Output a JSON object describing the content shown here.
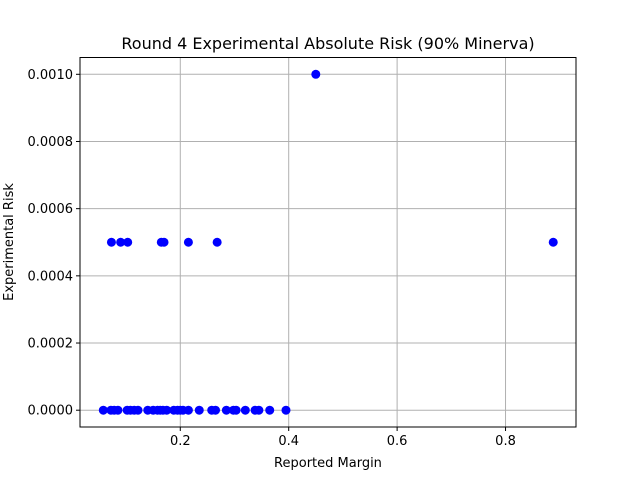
{
  "chart_data": {
    "type": "scatter",
    "title": "Round 4 Experimental Absolute Risk (90% Minerva)",
    "xlabel": "Reported Margin",
    "ylabel": "Experimental Risk",
    "xlim": [
      0.015,
      0.93
    ],
    "ylim": [
      -5e-05,
      0.00105
    ],
    "x_ticks": [
      0.2,
      0.4,
      0.6,
      0.8
    ],
    "x_tick_labels": [
      "0.2",
      "0.4",
      "0.6",
      "0.8"
    ],
    "y_ticks": [
      0.0,
      0.0002,
      0.0004,
      0.0006,
      0.0008,
      0.001
    ],
    "y_tick_labels": [
      "0.0000",
      "0.0002",
      "0.0004",
      "0.0006",
      "0.0008",
      "0.0010"
    ],
    "grid": true,
    "marker_color": "#0000ff",
    "series": [
      {
        "x": [
          0.058,
          0.072,
          0.078,
          0.085,
          0.102,
          0.108,
          0.115,
          0.122,
          0.14,
          0.15,
          0.158,
          0.163,
          0.168,
          0.175,
          0.188,
          0.195,
          0.2,
          0.205,
          0.215,
          0.235,
          0.258,
          0.265,
          0.285,
          0.298,
          0.303,
          0.32,
          0.338,
          0.345,
          0.365,
          0.395,
          0.073,
          0.09,
          0.103,
          0.165,
          0.17,
          0.215,
          0.268,
          0.888,
          0.45
        ],
        "y": [
          0,
          0,
          0,
          0,
          0,
          0,
          0,
          0,
          0,
          0,
          0,
          0,
          0,
          0,
          0,
          0,
          0,
          0,
          0,
          0,
          0,
          0,
          0,
          0,
          0,
          0,
          0,
          0,
          0,
          0,
          0.0005,
          0.0005,
          0.0005,
          0.0005,
          0.0005,
          0.0005,
          0.0005,
          0.0005,
          0.001
        ]
      }
    ]
  }
}
